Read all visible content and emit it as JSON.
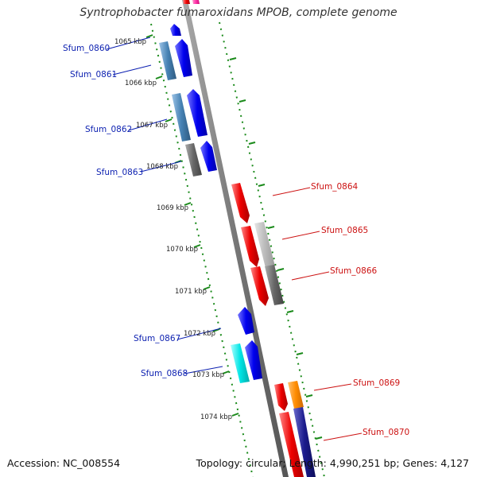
{
  "title": "Syntrophobacter fumaroxidans MPOB, complete genome",
  "footer": {
    "accession": "Accession: NC_008554",
    "topology": "Topology: circular; Length: 4,990,251 bp; Genes: 4,127"
  },
  "kbp_labels": [
    "1065 kbp",
    "1066 kbp",
    "1067 kbp",
    "1068 kbp",
    "1069 kbp",
    "1070 kbp",
    "1071 kbp",
    "1072 kbp",
    "1073 kbp",
    "1074 kbp"
  ],
  "genes_left": [
    "Sfum_0860",
    "Sfum_0861",
    "Sfum_0862",
    "Sfum_0863",
    "Sfum_0867",
    "Sfum_0868"
  ],
  "genes_right": [
    "Sfum_0864",
    "Sfum_0865",
    "Sfum_0866",
    "Sfum_0869",
    "Sfum_0870"
  ],
  "colors": {
    "forward": "#0000ee",
    "reverse": "#ee0000",
    "steelblue": "#4682b4",
    "gray": "#777777",
    "lightgray": "#bbbbbb",
    "cyan": "#00e5e5",
    "orange": "#ff8c00",
    "navy": "#1a1a8c",
    "magenta": "#ff33aa",
    "tick": "#1a8a1a"
  }
}
